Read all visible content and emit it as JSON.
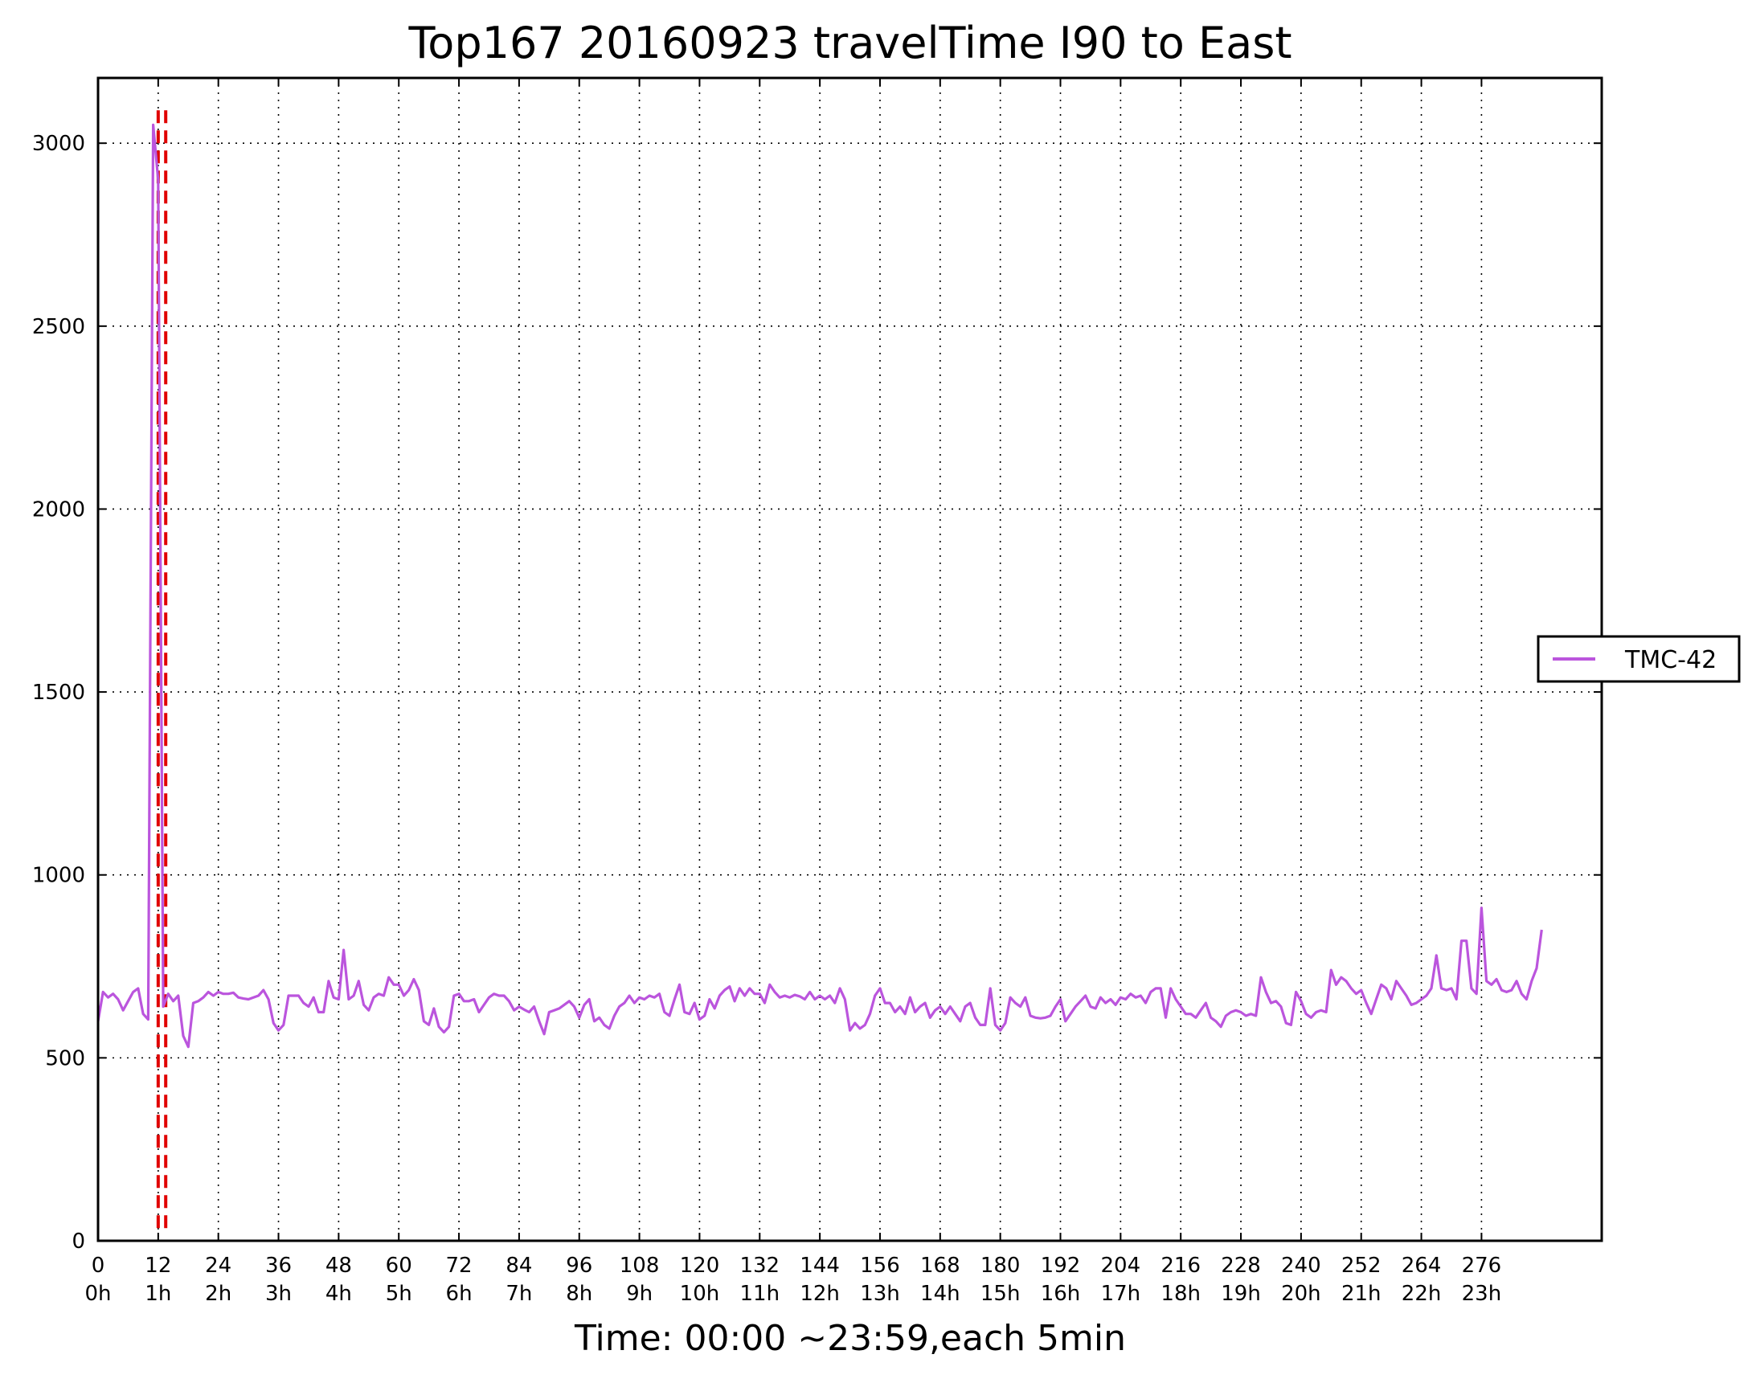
{
  "chart_data": {
    "type": "line",
    "title": "Top167 20160923 travelTime I90 to East",
    "xlabel": "Time: 00:00 ~23:59,each 5min",
    "ylabel": "",
    "xlim": [
      0,
      300
    ],
    "ylim": [
      0,
      3180
    ],
    "grid": true,
    "legend_placement": "right-outside",
    "x_ticks": [
      0,
      12,
      24,
      36,
      48,
      60,
      72,
      84,
      96,
      108,
      120,
      132,
      144,
      156,
      168,
      180,
      192,
      204,
      216,
      228,
      240,
      252,
      264,
      276
    ],
    "x_tick_labels": [
      "0",
      "12",
      "24",
      "36",
      "48",
      "60",
      "72",
      "84",
      "96",
      "108",
      "120",
      "132",
      "144",
      "156",
      "168",
      "180",
      "192",
      "204",
      "216",
      "228",
      "240",
      "252",
      "264",
      "276"
    ],
    "x_tick_sublabels": [
      "0h",
      "1h",
      "2h",
      "3h",
      "4h",
      "5h",
      "6h",
      "7h",
      "8h",
      "9h",
      "10h",
      "11h",
      "12h",
      "13h",
      "14h",
      "15h",
      "16h",
      "17h",
      "18h",
      "19h",
      "20h",
      "21h",
      "22h",
      "23h"
    ],
    "y_ticks": [
      0,
      500,
      1000,
      1500,
      2000,
      2500,
      3000
    ],
    "y_tick_labels": [
      "0",
      "500",
      "1000",
      "1500",
      "2000",
      "2500",
      "3000"
    ],
    "vlines": [
      {
        "x": 12,
        "color": "#e00000",
        "style": "dashed"
      },
      {
        "x": 13.5,
        "color": "#e00000",
        "style": "dashed"
      }
    ],
    "series": [
      {
        "name": "TMC-42",
        "color": "#bb55dd",
        "x_start": 0,
        "x_step": 1,
        "values": [
          600,
          680,
          665,
          675,
          660,
          630,
          655,
          680,
          690,
          620,
          605,
          3050,
          2900,
          640,
          675,
          655,
          670,
          560,
          530,
          650,
          655,
          665,
          680,
          670,
          680,
          675,
          675,
          678,
          665,
          662,
          660,
          665,
          670,
          685,
          660,
          595,
          575,
          590,
          670,
          670,
          670,
          650,
          640,
          665,
          625,
          625,
          710,
          665,
          660,
          795,
          660,
          670,
          710,
          645,
          630,
          665,
          675,
          670,
          720,
          700,
          700,
          670,
          685,
          715,
          685,
          600,
          590,
          635,
          585,
          570,
          585,
          670,
          675,
          655,
          655,
          660,
          625,
          645,
          665,
          675,
          670,
          670,
          655,
          630,
          640,
          632,
          625,
          640,
          600,
          565,
          625,
          630,
          635,
          645,
          655,
          640,
          610,
          645,
          660,
          600,
          610,
          590,
          580,
          615,
          640,
          650,
          670,
          650,
          665,
          660,
          670,
          665,
          675,
          625,
          615,
          660,
          700,
          625,
          620,
          650,
          605,
          615,
          660,
          635,
          670,
          685,
          695,
          655,
          690,
          670,
          690,
          675,
          675,
          650,
          700,
          680,
          665,
          670,
          665,
          672,
          668,
          660,
          680,
          660,
          670,
          660,
          670,
          650,
          690,
          660,
          575,
          595,
          580,
          590,
          620,
          670,
          690,
          650,
          650,
          625,
          640,
          620,
          665,
          625,
          640,
          650,
          610,
          630,
          640,
          620,
          640,
          620,
          600,
          640,
          650,
          610,
          590,
          590,
          690,
          590,
          575,
          595,
          665,
          650,
          640,
          665,
          615,
          610,
          608,
          610,
          615,
          640,
          660,
          600,
          620,
          640,
          655,
          670,
          640,
          635,
          665,
          650,
          660,
          645,
          665,
          660,
          675,
          665,
          670,
          650,
          680,
          690,
          690,
          610,
          690,
          660,
          640,
          620,
          620,
          610,
          630,
          650,
          610,
          600,
          585,
          615,
          625,
          630,
          625,
          615,
          620,
          615,
          720,
          680,
          650,
          655,
          640,
          595,
          590,
          680,
          655,
          620,
          610,
          625,
          630,
          625,
          740,
          700,
          720,
          710,
          690,
          675,
          685,
          650,
          620,
          660,
          700,
          690,
          660,
          710,
          690,
          670,
          645,
          650,
          660,
          670,
          690,
          780,
          690,
          685,
          690,
          660,
          820,
          820,
          690,
          675,
          910,
          710,
          700,
          715,
          685,
          680,
          685,
          710,
          675,
          660,
          710,
          745,
          850
        ]
      }
    ]
  }
}
